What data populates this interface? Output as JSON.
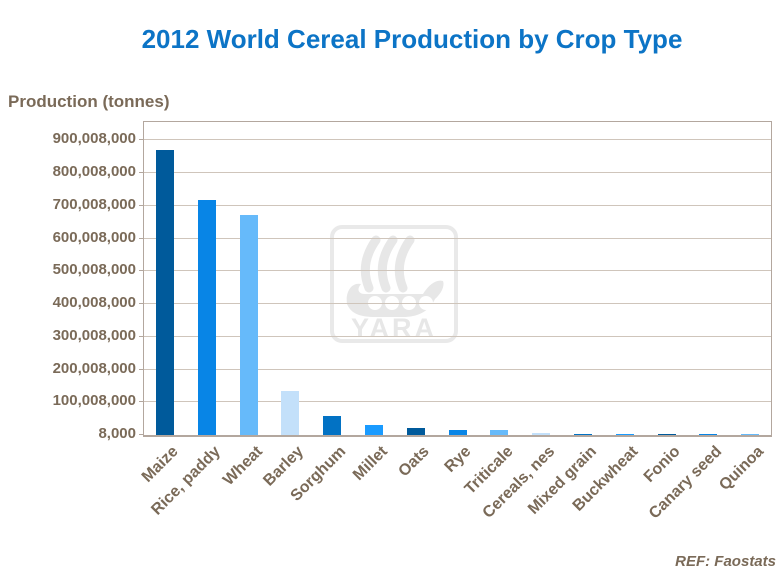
{
  "title": "2012 World Cereal Production by Crop Type",
  "y_axis_label": "Production (tonnes)",
  "reference": "REF: Faostats",
  "watermark": "YARA",
  "colors": {
    "title_text": "#0C74C6",
    "axis_text": "#7A6A58",
    "gridline": "#CFC5BB",
    "plot_border": "#B3A79E",
    "watermark": "#E7E7E7"
  },
  "chart_data": {
    "type": "bar",
    "title": "2012 World Cereal Production by Crop Type",
    "xlabel": "",
    "ylabel": "Production (tonnes)",
    "categories": [
      "Maize",
      "Rice, paddy",
      "Wheat",
      "Barley",
      "Sorghum",
      "Millet",
      "Oats",
      "Rye",
      "Triticale",
      "Cereals, nes",
      "Mixed grain",
      "Buckwheat",
      "Fonio",
      "Canary seed",
      "Quinoa"
    ],
    "values": [
      872000000,
      718000000,
      671000000,
      133000000,
      57000000,
      30000000,
      21000000,
      15000000,
      14000000,
      7000000,
      4000000,
      2300000,
      600000,
      150000,
      80000
    ],
    "bar_colors": [
      "#005A9B",
      "#0885E6",
      "#66BAFA",
      "#C3E0FA",
      "#0272C4",
      "#1A9BFF",
      "#005A9B",
      "#0885E6",
      "#66BAFA",
      "#C3E0FA",
      "#0272C4",
      "#1A9BFF",
      "#005A9B",
      "#0885E6",
      "#66BAFA"
    ],
    "y_axis": {
      "min": 8000,
      "max": 955000000,
      "tick_step": 100000000,
      "tick_labels": [
        "8,000",
        "100,008,000",
        "200,008,000",
        "300,008,000",
        "400,008,000",
        "500,008,000",
        "600,008,000",
        "700,008,000",
        "800,008,000",
        "900,008,000"
      ]
    },
    "grid": "horizontal",
    "legend": "none",
    "reference": "REF: Faostats"
  }
}
